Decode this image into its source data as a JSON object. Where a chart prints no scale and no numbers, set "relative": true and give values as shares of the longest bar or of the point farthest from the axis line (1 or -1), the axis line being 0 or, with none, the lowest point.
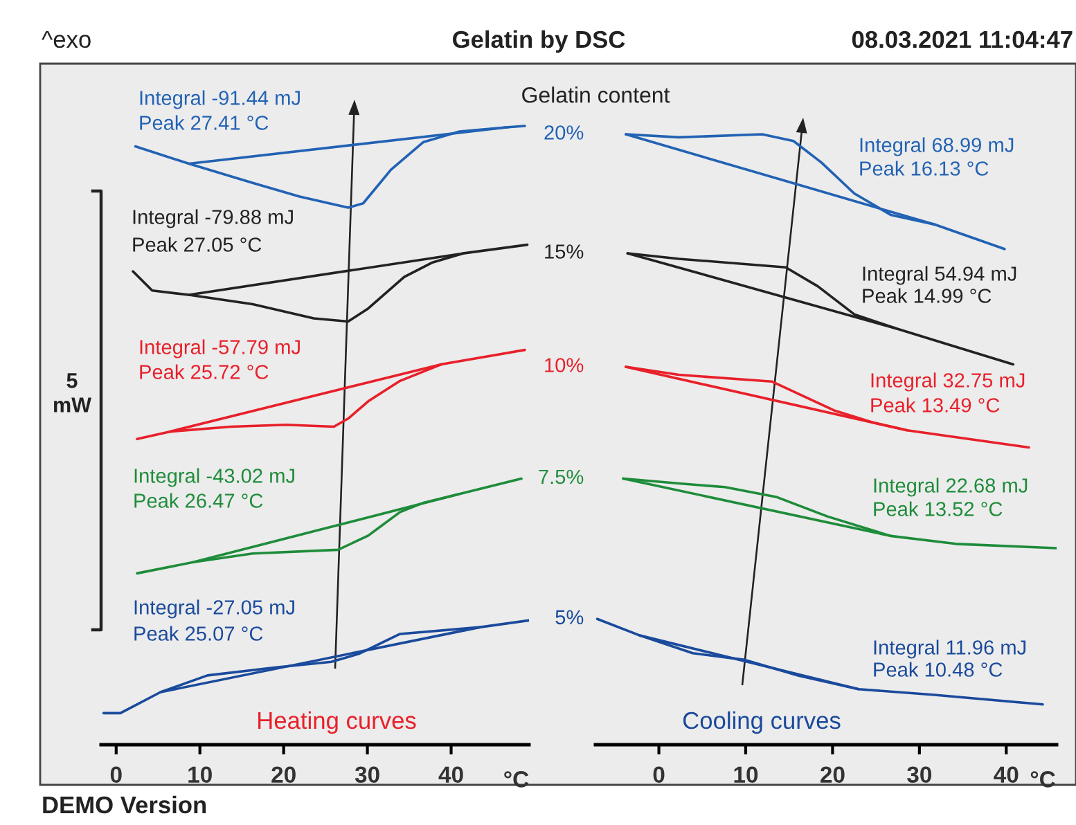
{
  "chart_data": [
    {
      "type": "line",
      "title": "Gelatin by DSC",
      "relative": true,
      "xlabel": "°C",
      "legend": false,
      "marker": "none",
      "line_style": "solid",
      "grid": false,
      "xlim": [
        -1.8,
        49.3
      ],
      "xticks": [
        0,
        10,
        20,
        30,
        40
      ],
      "series": [
        {
          "color": "#2262b4",
          "x": [
            2.3,
            8.7,
            16.3,
            21.9,
            27.7,
            29.5,
            32.8,
            36.7,
            41.0,
            46.8,
            48.8
          ],
          "values": [
            0.967,
            0.939,
            0.908,
            0.886,
            0.868,
            0.875,
            0.929,
            0.974,
            0.991,
            0.998,
            1.0
          ]
        },
        {
          "color": "#222222",
          "x": [
            2.0,
            4.3,
            8.7,
            16.3,
            23.6,
            27.7,
            30.1,
            34.4,
            37.7,
            41.4,
            49.1
          ],
          "values": [
            0.765,
            0.734,
            0.727,
            0.712,
            0.689,
            0.684,
            0.705,
            0.756,
            0.779,
            0.794,
            0.808
          ]
        },
        {
          "color": "#e8202a",
          "x": [
            2.5,
            6.4,
            13.7,
            20.3,
            26.0,
            27.8,
            30.1,
            33.9,
            38.9,
            48.8
          ],
          "values": [
            0.494,
            0.506,
            0.514,
            0.517,
            0.514,
            0.528,
            0.555,
            0.588,
            0.615,
            0.638
          ]
        },
        {
          "color": "#1e8c3a",
          "x": [
            2.5,
            9.2,
            16.3,
            26.5,
            30.1,
            33.9,
            36.7,
            40.9,
            48.4
          ],
          "values": [
            0.277,
            0.295,
            0.309,
            0.315,
            0.338,
            0.376,
            0.391,
            0.405,
            0.43
          ]
        },
        {
          "color": "#1a4a9c",
          "x": [
            -1.5,
            0.5,
            5.3,
            10.9,
            19.1,
            25.7,
            29.0,
            33.9,
            43.5,
            49.3
          ],
          "values": [
            0.051,
            0.051,
            0.085,
            0.112,
            0.125,
            0.134,
            0.147,
            0.179,
            0.19,
            0.201
          ]
        },
        {
          "color": "#2262b4",
          "x": [
            8.7,
            46.8
          ],
          "values": [
            0.939,
            0.998
          ]
        },
        {
          "color": "#222222",
          "x": [
            8.7,
            41.4
          ],
          "values": [
            0.727,
            0.794
          ]
        },
        {
          "color": "#e8202a",
          "x": [
            6.4,
            38.9
          ],
          "values": [
            0.506,
            0.615
          ]
        },
        {
          "color": "#1e8c3a",
          "x": [
            9.2,
            40.9
          ],
          "values": [
            0.295,
            0.405
          ]
        },
        {
          "color": "#1a4a9c",
          "x": [
            5.3,
            43.5
          ],
          "values": [
            0.085,
            0.19
          ]
        }
      ],
      "annotations": [
        "Integral -91.44 mJ",
        "Peak 27.41 °C",
        "Integral -79.88 mJ",
        "Peak 27.05 °C",
        "Integral -57.79 mJ",
        "Peak 25.72 °C",
        "Integral -43.02 mJ",
        "Peak 26.47 °C",
        "Integral -27.05 mJ",
        "Peak 25.07 °C",
        "Heating curves",
        "Gelatin content",
        "^exo",
        "08.03.2021 11:04:47",
        "DEMO Version",
        "5\nmW"
      ]
    },
    {
      "type": "line",
      "relative": true,
      "xlabel": "°C",
      "legend": false,
      "marker": "none",
      "line_style": "solid",
      "grid": false,
      "xlim": [
        -7.3,
        45.8
      ],
      "xticks": [
        0,
        10,
        20,
        30,
        40
      ],
      "series": [
        {
          "name": "20%",
          "color": "#2262b4",
          "x": [
            -3.8,
            2.3,
            11.9,
            15.5,
            18.7,
            22.5,
            26.7,
            31.8,
            39.8
          ],
          "values": [
            1.0,
            0.995,
            1.0,
            0.989,
            0.954,
            0.903,
            0.868,
            0.852,
            0.812
          ]
        },
        {
          "name": "15%",
          "color": "#222222",
          "x": [
            -3.6,
            2.3,
            14.6,
            18.3,
            22.5,
            27.3,
            33.0,
            40.8
          ],
          "values": [
            0.805,
            0.796,
            0.782,
            0.751,
            0.705,
            0.682,
            0.657,
            0.623
          ]
        },
        {
          "name": "10%",
          "color": "#e8202a",
          "x": [
            -3.8,
            2.3,
            13.0,
            20.3,
            24.6,
            28.6,
            42.6
          ],
          "values": [
            0.619,
            0.606,
            0.595,
            0.547,
            0.528,
            0.515,
            0.487
          ]
        },
        {
          "name": "7.5%",
          "color": "#1e8c3a",
          "x": [
            -4.1,
            2.3,
            7.6,
            13.5,
            19.4,
            26.7,
            34.2,
            45.8
          ],
          "values": [
            0.436,
            0.428,
            0.422,
            0.406,
            0.374,
            0.342,
            0.329,
            0.322
          ]
        },
        {
          "name": "5%",
          "color": "#1a4a9c",
          "x": [
            -7.1,
            -2.2,
            3.9,
            9.9,
            16.1,
            23.0,
            31.5,
            44.2
          ],
          "values": [
            0.206,
            0.179,
            0.15,
            0.139,
            0.113,
            0.091,
            0.082,
            0.066
          ]
        },
        {
          "color": "#2262b4",
          "x": [
            -3.8,
            31.8
          ],
          "values": [
            1.0,
            0.852
          ]
        },
        {
          "color": "#222222",
          "x": [
            -3.6,
            27.3
          ],
          "values": [
            0.805,
            0.682
          ]
        },
        {
          "color": "#e8202a",
          "x": [
            -3.8,
            28.6
          ],
          "values": [
            0.619,
            0.515
          ]
        },
        {
          "color": "#1e8c3a",
          "x": [
            -4.1,
            26.7
          ],
          "values": [
            0.436,
            0.342
          ]
        },
        {
          "color": "#1a4a9c",
          "x": [
            -2.2,
            23.0
          ],
          "values": [
            0.179,
            0.091
          ]
        }
      ],
      "annotations": [
        "Integral 68.99 mJ",
        "Peak 16.13 °C",
        "Integral 54.94 mJ",
        "Peak 14.99 °C",
        "Integral 32.75 mJ",
        "Peak 13.49 °C",
        "Integral 22.68 mJ",
        "Peak 13.52 °C",
        "Integral 11.96 mJ",
        "Peak 10.48 °C",
        "Cooling curves"
      ]
    }
  ]
}
